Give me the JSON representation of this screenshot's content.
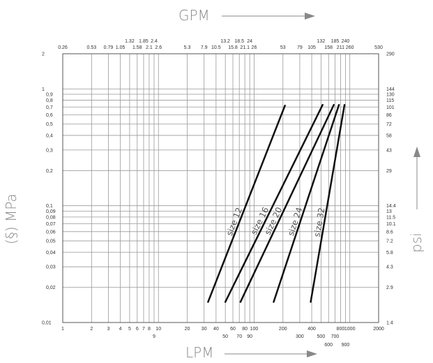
{
  "chart_data": {
    "type": "line",
    "scale": "log-log",
    "grid": true,
    "top_axis_title": "GPM",
    "bottom_axis_title": "LPM",
    "left_axis_title": "(§) MPa",
    "right_axis_title": "psi",
    "x_range_lpm": [
      1,
      2000
    ],
    "y_range_mpa": [
      0.01,
      2
    ],
    "bottom_ticks_row1": [
      "1",
      "2",
      "3",
      "4",
      "5",
      "6",
      "7",
      "8",
      "10",
      "20",
      "30",
      "40",
      "60",
      "80",
      "100",
      "200",
      "400",
      "800",
      "1000",
      "2000"
    ],
    "bottom_ticks_row1_values": [
      1,
      2,
      3,
      4,
      5,
      6,
      7,
      8,
      10,
      20,
      30,
      40,
      60,
      80,
      100,
      200,
      400,
      800,
      1000,
      2000
    ],
    "bottom_ticks_row2": [
      "9",
      "50",
      "70",
      "90",
      "300",
      "500",
      "700"
    ],
    "bottom_ticks_row2_values": [
      9,
      50,
      70,
      90,
      300,
      500,
      700
    ],
    "bottom_ticks_row3": [
      "600",
      "900"
    ],
    "bottom_ticks_row3_values": [
      600,
      900
    ],
    "top_ticks_row1": [
      "0.26",
      "0.53",
      "0.79",
      "1.05",
      "1.58",
      "2.1",
      "2.6",
      "5.3",
      "7.9",
      "10.5",
      "15.8",
      "21.1",
      "26",
      "53",
      "79",
      "105",
      "158",
      "211",
      "260",
      "530"
    ],
    "top_ticks_row1_values": [
      1,
      2,
      3,
      4,
      6,
      8,
      10,
      20,
      30,
      40,
      60,
      80,
      100,
      200,
      300,
      400,
      600,
      800,
      1000,
      2000
    ],
    "top_ticks_row2": [
      "1.32",
      "1.85",
      "2.4",
      "13.2",
      "18.5",
      "24",
      "132",
      "185",
      "240"
    ],
    "top_ticks_row2_values": [
      5,
      7,
      9,
      50,
      70,
      90,
      500,
      700,
      900
    ],
    "left_ticks": [
      "2",
      "1",
      "0,9",
      "0,8",
      "0,7",
      "0,6",
      "0,5",
      "0,4",
      "0,3",
      "0,2",
      "0,1",
      "0,09",
      "0,08",
      "0,07",
      "0,06",
      "0,05",
      "0,04",
      "0,03",
      "0,02",
      "0,01"
    ],
    "left_ticks_values": [
      2,
      1,
      0.9,
      0.8,
      0.7,
      0.6,
      0.5,
      0.4,
      0.3,
      0.2,
      0.1,
      0.09,
      0.08,
      0.07,
      0.06,
      0.05,
      0.04,
      0.03,
      0.02,
      0.01
    ],
    "right_ticks": [
      "290",
      "144",
      "130",
      "115",
      "101",
      "86",
      "72",
      "58",
      "43",
      "29",
      "14.4",
      "13",
      "11.5",
      "10.1",
      "8.6",
      "7.2",
      "5.8",
      "4.3",
      "2.9",
      "1.4"
    ],
    "series": [
      {
        "name": "size 12",
        "points": [
          {
            "x": 33,
            "y": 0.015
          },
          {
            "x": 210,
            "y": 0.72
          }
        ]
      },
      {
        "name": "size 16",
        "points": [
          {
            "x": 50,
            "y": 0.015
          },
          {
            "x": 520,
            "y": 0.73
          }
        ]
      },
      {
        "name": "size 20",
        "points": [
          {
            "x": 72,
            "y": 0.015
          },
          {
            "x": 680,
            "y": 0.73
          }
        ]
      },
      {
        "name": "size 24",
        "points": [
          {
            "x": 160,
            "y": 0.015
          },
          {
            "x": 770,
            "y": 0.73
          }
        ]
      },
      {
        "name": "size 32",
        "points": [
          {
            "x": 390,
            "y": 0.015
          },
          {
            "x": 880,
            "y": 0.73
          }
        ]
      }
    ]
  }
}
